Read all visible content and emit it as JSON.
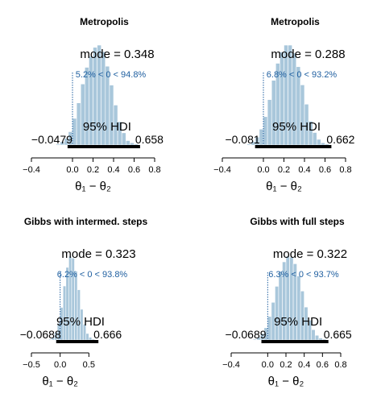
{
  "chart_data": [
    {
      "type": "histogram",
      "title": "Metropolis",
      "mode_label": "mode = 0.348",
      "compare_label": "5.2% < 0 < 94.8%",
      "hdi_label": "95% HDI",
      "hdi_low_label": "−0.0479",
      "hdi_high_label": "0.658",
      "hdi": [
        -0.0479,
        0.658
      ],
      "xlabel": "θ₁ − θ₂",
      "xlim": [
        -0.4,
        0.8
      ],
      "xticks": [
        -0.4,
        0.0,
        0.2,
        0.4,
        0.6,
        0.8
      ],
      "xtick_labels": [
        "−0.4",
        "0.0",
        "0.2",
        "0.4",
        "0.6",
        "0.8"
      ],
      "bin_start": -0.16,
      "bin_width": 0.04,
      "values": [
        1,
        3,
        6,
        12,
        24,
        38,
        55,
        70,
        80,
        88,
        90,
        84,
        71,
        54,
        36,
        21,
        11,
        4,
        2,
        1
      ]
    },
    {
      "type": "histogram",
      "title": "Metropolis",
      "mode_label": "mode = 0.288",
      "compare_label": "6.8% < 0 < 93.2%",
      "hdi_label": "95% HDI",
      "hdi_low_label": "−0.081",
      "hdi_high_label": "0.662",
      "hdi": [
        -0.081,
        0.662
      ],
      "xlabel": "θ₁ − θ₂",
      "xlim": [
        -0.4,
        0.8
      ],
      "xticks": [
        -0.4,
        0.0,
        0.2,
        0.4,
        0.6,
        0.8
      ],
      "xtick_labels": [
        "−0.4",
        "0.0",
        "0.2",
        "0.4",
        "0.6",
        "0.8"
      ],
      "bin_start": -0.16,
      "bin_width": 0.04,
      "values": [
        1,
        3,
        7,
        14,
        25,
        40,
        57,
        72,
        82,
        88,
        88,
        81,
        69,
        53,
        36,
        21,
        11,
        5,
        2,
        1
      ]
    },
    {
      "type": "histogram",
      "title": "Gibbs with intermed. steps",
      "mode_label": "mode = 0.323",
      "compare_label": "6.2% < 0 < 93.8%",
      "hdi_label": "95% HDI",
      "hdi_low_label": "−0.0688",
      "hdi_high_label": "0.666",
      "hdi": [
        -0.0688,
        0.666
      ],
      "xlabel": "θ₁ − θ₂",
      "xlim": [
        -0.5,
        1.0
      ],
      "xticks": [
        -0.5,
        0.0,
        0.5
      ],
      "xtick_labels": [
        "−0.5",
        "0.0",
        "0.5"
      ],
      "bin_start": -0.2,
      "bin_width": 0.05,
      "values": [
        1,
        3,
        8,
        18,
        35,
        58,
        78,
        90,
        88,
        74,
        54,
        33,
        17,
        7,
        3,
        1
      ]
    },
    {
      "type": "histogram",
      "title": "Gibbs with full steps",
      "mode_label": "mode = 0.322",
      "compare_label": "6.3% < 0 < 93.7%",
      "hdi_label": "95% HDI",
      "hdi_low_label": "−0.0689",
      "hdi_high_label": "0.665",
      "hdi": [
        -0.0689,
        0.665
      ],
      "xlabel": "θ₁ − θ₂",
      "xlim": [
        -0.4,
        0.8
      ],
      "xticks": [
        -0.4,
        0.0,
        0.2,
        0.4,
        0.6,
        0.8
      ],
      "xtick_labels": [
        "−0.4",
        "0.0",
        "0.2",
        "0.4",
        "0.6",
        "0.8"
      ],
      "bin_start": -0.16,
      "bin_width": 0.04,
      "values": [
        1,
        3,
        7,
        13,
        25,
        40,
        57,
        73,
        83,
        89,
        88,
        81,
        68,
        52,
        35,
        21,
        11,
        5,
        2,
        1
      ]
    }
  ]
}
